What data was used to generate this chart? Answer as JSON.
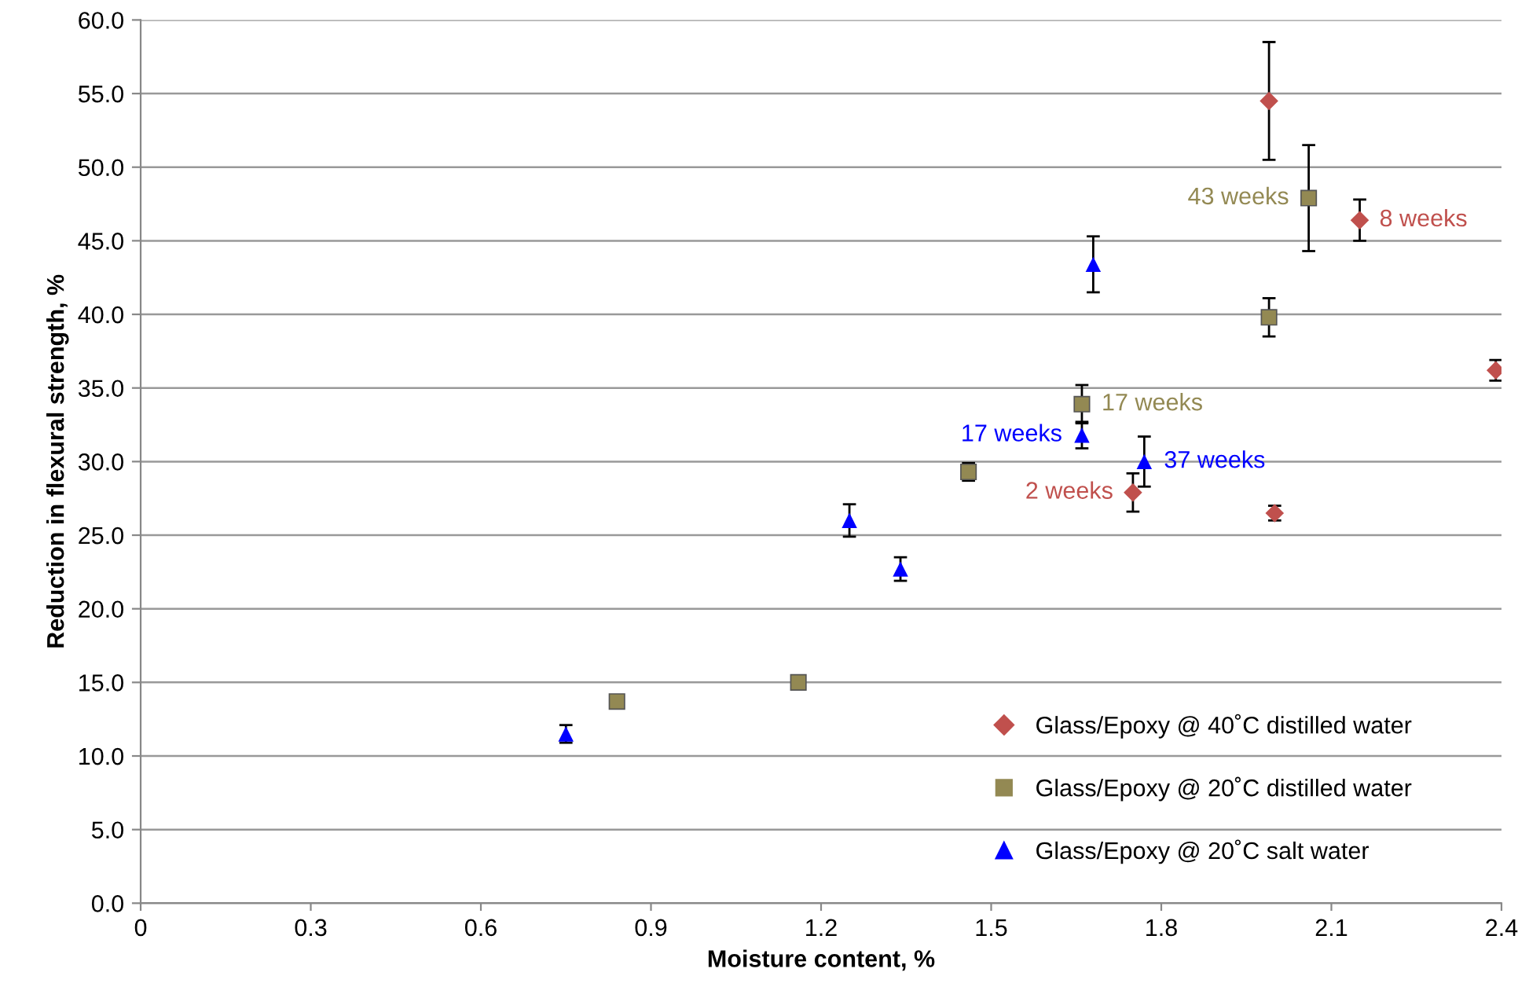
{
  "chart_data": {
    "type": "scatter",
    "xlabel": "Moisture content, %",
    "ylabel": "Reduction in flexural strength, %",
    "xlim": [
      0,
      2.4
    ],
    "xticks": [
      0,
      0.3,
      0.6,
      0.9,
      1.2,
      1.5,
      1.8,
      2.1,
      2.4
    ],
    "ylim": [
      0,
      60
    ],
    "yticks": [
      {
        "value": 0,
        "label": "0.0"
      },
      {
        "value": 5,
        "label": "5.0"
      },
      {
        "value": 10,
        "label": "10.0"
      },
      {
        "value": 15,
        "label": "15.0"
      },
      {
        "value": 20,
        "label": "20.0"
      },
      {
        "value": 25,
        "label": "25.0"
      },
      {
        "value": 30,
        "label": "30.0"
      },
      {
        "value": 35,
        "label": "35.0"
      },
      {
        "value": 40,
        "label": "40.0"
      },
      {
        "value": 45,
        "label": "45.0"
      },
      {
        "value": 50,
        "label": "50.0"
      },
      {
        "value": 55,
        "label": "55.0"
      },
      {
        "value": 60,
        "label": "60.0"
      }
    ],
    "grid": "y",
    "legend": "bottom right",
    "series": [
      {
        "name": "Glass/Epoxy @ 40˚C distilled water",
        "color": "#c0504d",
        "marker": "diamond",
        "x": [
          1.99,
          2.15,
          2.39,
          1.75,
          2.0
        ],
        "values": [
          54.5,
          46.4,
          36.2,
          27.9,
          26.5
        ],
        "errors": [
          4.0,
          1.4,
          0.7,
          1.3,
          0.5
        ]
      },
      {
        "name": "Glass/Epoxy @ 20˚C distilled water",
        "color": "#938953",
        "marker": "square",
        "x": [
          0.84,
          1.16,
          1.46,
          1.66,
          1.99,
          2.06
        ],
        "values": [
          13.7,
          15.0,
          29.3,
          33.9,
          39.8,
          47.9
        ],
        "errors": [
          null,
          null,
          0.6,
          1.3,
          1.3,
          3.6
        ]
      },
      {
        "name": "Glass/Epoxy @ 20˚C salt water",
        "color": "#0000ff",
        "marker": "triangle",
        "x": [
          0.75,
          1.25,
          1.34,
          1.66,
          1.68,
          1.77
        ],
        "values": [
          11.5,
          26.0,
          22.7,
          31.8,
          43.4,
          30.0
        ],
        "errors": [
          0.6,
          1.1,
          0.8,
          0.9,
          1.9,
          1.7
        ]
      }
    ],
    "annotations": [
      {
        "text": "43 weeks",
        "x": 2.06,
        "y": 47.9
      },
      {
        "text": "8 weeks",
        "x": 2.15,
        "y": 46.4
      },
      {
        "text": "17 weeks",
        "x": 1.66,
        "y": 33.9
      },
      {
        "text": "17 weeks",
        "x": 1.66,
        "y": 31.8
      },
      {
        "text": "37 weeks",
        "x": 1.77,
        "y": 30.0
      },
      {
        "text": "2 weeks",
        "x": 1.75,
        "y": 27.9
      }
    ]
  }
}
